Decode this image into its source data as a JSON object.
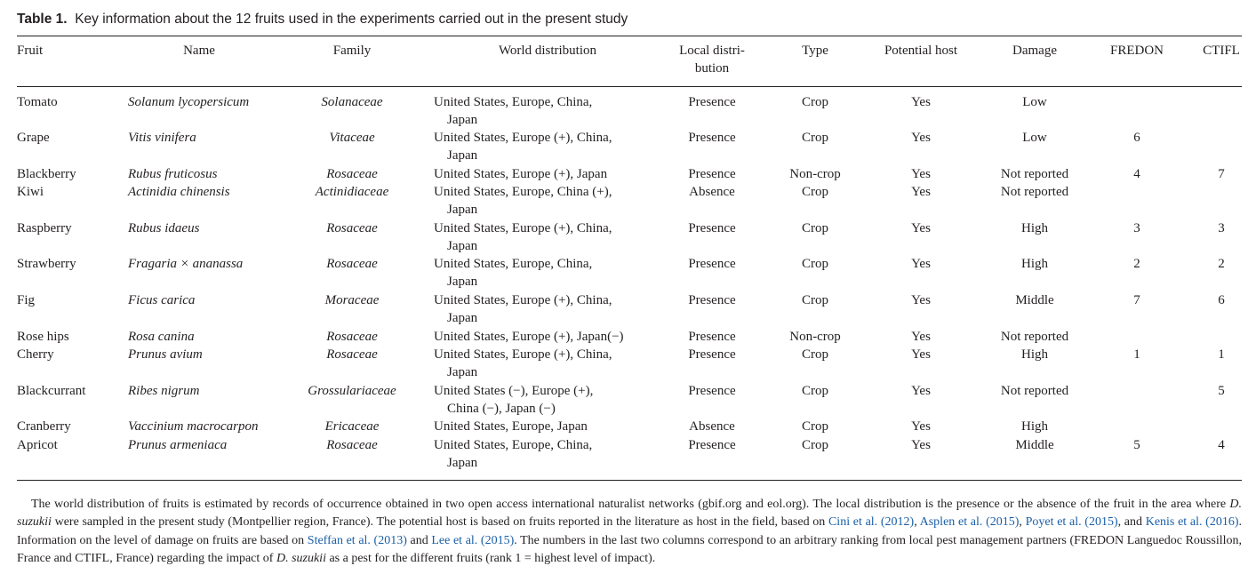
{
  "caption": {
    "label": "Table 1.",
    "text": "Key information about the 12 fruits used in the experiments carried out in the present study"
  },
  "headers": {
    "fruit": "Fruit",
    "name": "Name",
    "family": "Family",
    "world": "World distribution",
    "local_1": "Local distri-",
    "local_2": "bution",
    "type": "Type",
    "host": "Potential host",
    "damage": "Damage",
    "fredon": "FREDON",
    "ctifl": "CTIFL"
  },
  "rows": [
    {
      "fruit": "Tomato",
      "name": "Solanum lycopersicum",
      "family": "Solanaceae",
      "world": [
        "United States, Europe, China,",
        "Japan"
      ],
      "local": "Presence",
      "type": "Crop",
      "host": "Yes",
      "damage": "Low",
      "fredon": "",
      "ctifl": ""
    },
    {
      "fruit": "Grape",
      "name": "Vitis vinifera",
      "family": "Vitaceae",
      "world": [
        "United States, Europe (+), China,",
        "Japan"
      ],
      "local": "Presence",
      "type": "Crop",
      "host": "Yes",
      "damage": "Low",
      "fredon": "6",
      "ctifl": ""
    },
    {
      "fruit": "Blackberry",
      "name": "Rubus fruticosus",
      "family": "Rosaceae",
      "world": [
        "United States, Europe (+), Japan"
      ],
      "local": "Presence",
      "type": "Non-crop",
      "host": "Yes",
      "damage": "Not reported",
      "fredon": "4",
      "ctifl": "7"
    },
    {
      "fruit": "Kiwi",
      "name": "Actinidia chinensis",
      "family": "Actinidiaceae",
      "world": [
        "United States, Europe, China (+),",
        "Japan"
      ],
      "local": "Absence",
      "type": "Crop",
      "host": "Yes",
      "damage": "Not reported",
      "fredon": "",
      "ctifl": ""
    },
    {
      "fruit": "Raspberry",
      "name": "Rubus idaeus",
      "family": "Rosaceae",
      "world": [
        "United States, Europe (+), China,",
        "Japan"
      ],
      "local": "Presence",
      "type": "Crop",
      "host": "Yes",
      "damage": "High",
      "fredon": "3",
      "ctifl": "3"
    },
    {
      "fruit": "Strawberry",
      "name": "Fragaria × ananassa",
      "family": "Rosaceae",
      "world": [
        "United States, Europe, China,",
        "Japan"
      ],
      "local": "Presence",
      "type": "Crop",
      "host": "Yes",
      "damage": "High",
      "fredon": "2",
      "ctifl": "2"
    },
    {
      "fruit": "Fig",
      "name": "Ficus carica",
      "family": "Moraceae",
      "world": [
        "United States, Europe (+), China,",
        "Japan"
      ],
      "local": "Presence",
      "type": "Crop",
      "host": "Yes",
      "damage": "Middle",
      "fredon": "7",
      "ctifl": "6"
    },
    {
      "fruit": "Rose hips",
      "name": "Rosa canina",
      "family": "Rosaceae",
      "world": [
        "United States, Europe (+), Japan(−)"
      ],
      "local": "Presence",
      "type": "Non-crop",
      "host": "Yes",
      "damage": "Not reported",
      "fredon": "",
      "ctifl": ""
    },
    {
      "fruit": "Cherry",
      "name": "Prunus avium",
      "family": "Rosaceae",
      "world": [
        "United States, Europe (+), China,",
        "Japan"
      ],
      "local": "Presence",
      "type": "Crop",
      "host": "Yes",
      "damage": "High",
      "fredon": "1",
      "ctifl": "1"
    },
    {
      "fruit": "Blackcurrant",
      "name": "Ribes nigrum",
      "family": "Grossulariaceae",
      "world": [
        "United States (−), Europe (+),",
        "China (−), Japan (−)"
      ],
      "local": "Presence",
      "type": "Crop",
      "host": "Yes",
      "damage": "Not reported",
      "fredon": "",
      "ctifl": "5"
    },
    {
      "fruit": "Cranberry",
      "name": "Vaccinium macrocarpon",
      "family": "Ericaceae",
      "world": [
        "United States, Europe, Japan"
      ],
      "local": "Absence",
      "type": "Crop",
      "host": "Yes",
      "damage": "High",
      "fredon": "",
      "ctifl": ""
    },
    {
      "fruit": "Apricot",
      "name": "Prunus armeniaca",
      "family": "Rosaceae",
      "world": [
        "United States, Europe, China,",
        "Japan"
      ],
      "local": "Presence",
      "type": "Crop",
      "host": "Yes",
      "damage": "Middle",
      "fredon": "5",
      "ctifl": "4"
    }
  ],
  "footnote": {
    "p1": "The world distribution of fruits is estimated by records of occurrence obtained in two open access international naturalist networks (gbif.org and eol.org). The local distribution is the presence or the absence of the fruit in the area where ",
    "species1": "D. suzukii",
    "p2": " were sampled in the present study (Montpellier region, France). The potential host is based on fruits reported in the literature as host in the field, based on ",
    "ref1": "Cini et al. (2012)",
    "sep1": ", ",
    "ref2": "Asplen et al. (2015)",
    "sep2": ", ",
    "ref3": "Poyet et al. (2015)",
    "sep3": ", and ",
    "ref4": "Kenis et al. (2016)",
    "p3": ". Information on the level of damage on fruits are based on ",
    "ref5": "Steffan et al. (2013)",
    "sep4": " and ",
    "ref6": "Lee et al. (2015)",
    "p4": ". The numbers in the last two columns correspond to an arbitrary ranking from local pest management partners (FREDON Languedoc Roussillon, France and CTIFL, France) regarding the impact of ",
    "species2": "D. suzukii",
    "p5": " as a pest for the different fruits (rank 1 = highest level of impact)."
  }
}
